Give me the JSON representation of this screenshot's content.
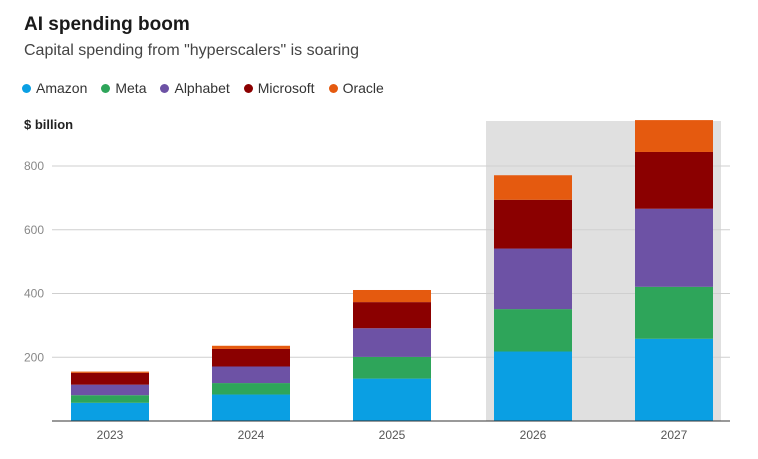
{
  "chart_data": {
    "type": "bar",
    "stacked": true,
    "title": "AI spending boom",
    "subtitle": "Capital spending from \"hyperscalers\" is soaring",
    "ylabel": "$ billion",
    "ylim": [
      0,
      950
    ],
    "yticks": [
      200,
      400,
      600,
      800
    ],
    "grid": true,
    "legend_position": "top",
    "categories": [
      "2023",
      "2024",
      "2025",
      "2026",
      "2027"
    ],
    "highlighted_categories": [
      "2026",
      "2027"
    ],
    "series": [
      {
        "name": "Amazon",
        "color": "#0a9fe3",
        "values": [
          57,
          83,
          133,
          218,
          258
        ]
      },
      {
        "name": "Meta",
        "color": "#2ea55a",
        "values": [
          24,
          36,
          68,
          133,
          163
        ]
      },
      {
        "name": "Alphabet",
        "color": "#6d52a5",
        "values": [
          33,
          52,
          90,
          190,
          245
        ]
      },
      {
        "name": "Microsoft",
        "color": "#8b0000",
        "values": [
          37,
          55,
          82,
          153,
          178
        ]
      },
      {
        "name": "Oracle",
        "color": "#e55a0f",
        "values": [
          4,
          10,
          38,
          77,
          100
        ]
      }
    ]
  }
}
